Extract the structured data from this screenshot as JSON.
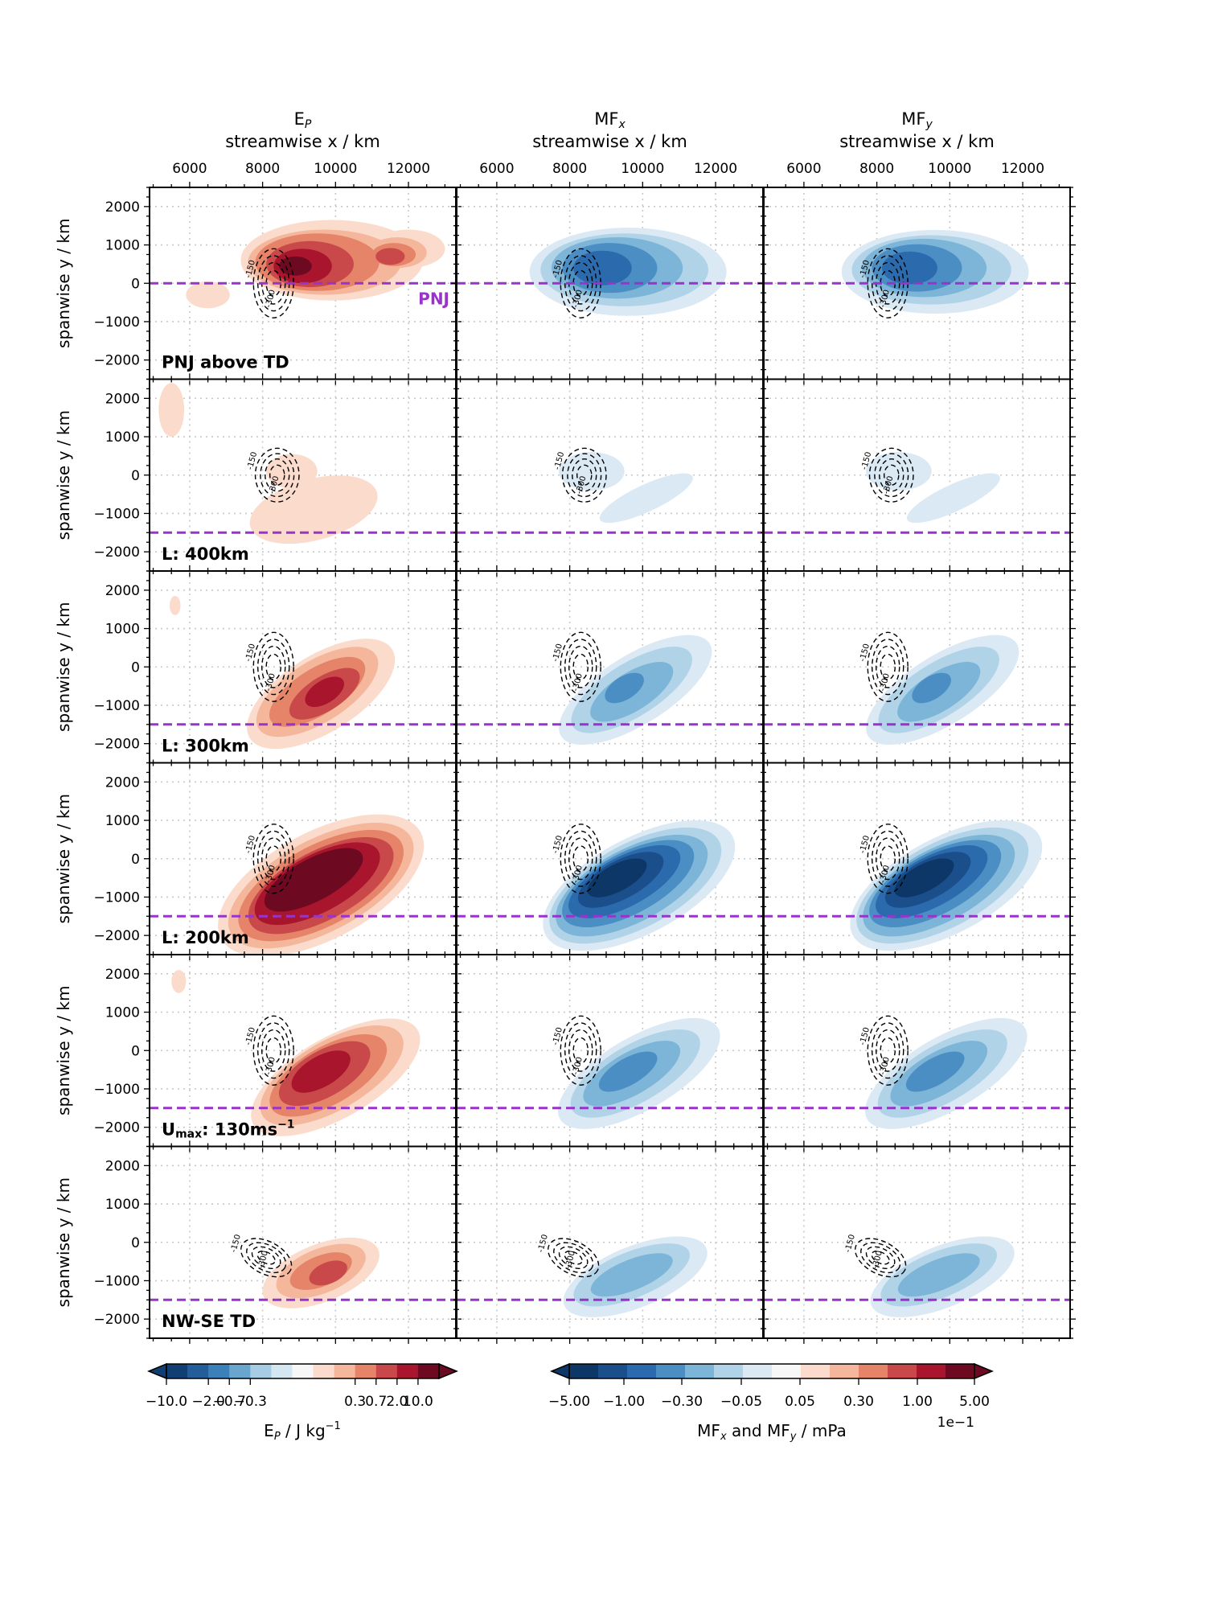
{
  "chart_data": {
    "type": "contour",
    "columns": [
      {
        "title_main": "E",
        "title_sub": "P",
        "xlabel": "streamwise x / km",
        "kind": "ep"
      },
      {
        "title_main": "MF",
        "title_sub": "x",
        "xlabel": "streamwise x / km",
        "kind": "mf"
      },
      {
        "title_main": "MF",
        "title_sub": "y",
        "xlabel": "streamwise x / km",
        "kind": "mf"
      }
    ],
    "xticks": [
      6000,
      8000,
      10000,
      12000
    ],
    "xtick_labels": [
      "6000",
      "8000",
      "10000",
      "12000"
    ],
    "xlim": [
      4900,
      13300
    ],
    "yticks": [
      2000,
      1000,
      0,
      -1000,
      -2000
    ],
    "ytick_labels": [
      "2000",
      "1000",
      "0",
      "−1000",
      "−2000"
    ],
    "ylim": [
      -2500,
      2500
    ],
    "ylabel": "spanwise y / km",
    "grid": true,
    "pnj_label": "PNJ",
    "rows": [
      {
        "label": "PNJ above TD",
        "pnj_y": 0,
        "td": "ns",
        "label_in_box": true
      },
      {
        "label": "L: 400km",
        "pnj_y": -1500,
        "td": "ns-small"
      },
      {
        "label": "L: 300km",
        "pnj_y": -1500,
        "td": "ns"
      },
      {
        "label": "L: 200km",
        "pnj_y": -1500,
        "td": "ns"
      },
      {
        "label_main": "U",
        "label_sub": "max",
        "label_tail": ": 130ms",
        "label_sup": "−1",
        "pnj_y": -1500,
        "td": "ns"
      },
      {
        "label": "NW-SE TD",
        "pnj_y": -1500,
        "td": "nwse"
      }
    ],
    "td_contour_labels": [
      "-150",
      "-300"
    ],
    "colorbar_ep": {
      "ticks": [
        "−10.0",
        "−2.0",
        "−0.7",
        "−0.3",
        "0.3",
        "0.7",
        "2.0",
        "10.0"
      ],
      "label_main": "E",
      "label_sub": "P",
      "label_tail": " / J kg",
      "label_sup": "−1",
      "colors": [
        "#123f73",
        "#235e9b",
        "#3b80b9",
        "#6aa5cd",
        "#a6cde3",
        "#d4e6f1",
        "#f7f7f7",
        "#fbdccc",
        "#f5b79c",
        "#e58468",
        "#c9494a",
        "#a8152c",
        "#6d0a22"
      ]
    },
    "colorbar_mf": {
      "ticks": [
        "−5.00",
        "−1.00",
        "−0.30",
        "−0.05",
        "0.05",
        "0.30",
        "1.00",
        "5.00"
      ],
      "label_main": "MF",
      "label_sub1": "x",
      "label_mid": " and MF",
      "label_sub2": "y",
      "label_tail": " / mPa",
      "offset": "1e−1",
      "colors": [
        "#0c3766",
        "#1a4f8c",
        "#2a6aad",
        "#4a8ec4",
        "#7cb5d8",
        "#b1d3e8",
        "#dae9f4",
        "#f7f7f7",
        "#fbdccc",
        "#f5b79c",
        "#e58468",
        "#c9494a",
        "#a8152c",
        "#6d0a22"
      ]
    }
  }
}
